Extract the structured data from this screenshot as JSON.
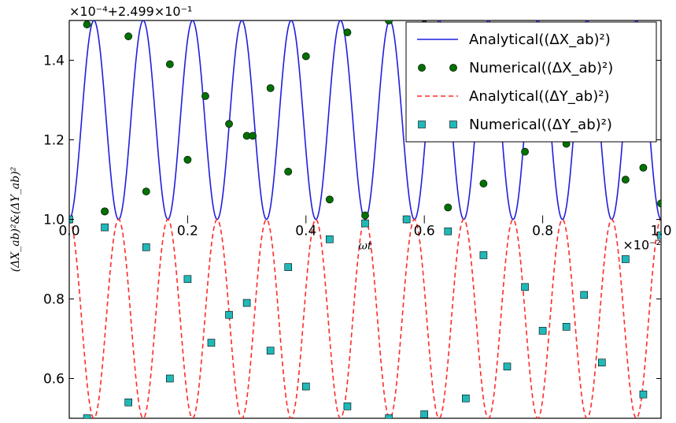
{
  "chart_data": {
    "type": "line",
    "title": "",
    "xlabel": "ωt",
    "ylabel": "(ΔX_ab)²&(ΔY_ab)²",
    "x_offset_label": "×10⁻²",
    "y_offset_label": "×10⁻⁴+2.499×10⁻¹",
    "xlim": [
      0,
      1.0
    ],
    "ylim": [
      0.5,
      1.5
    ],
    "x_ticks": [
      "0.0",
      "0.2",
      "0.4",
      "0.6",
      "0.8",
      "1.0"
    ],
    "y_ticks": [
      "0.6",
      "0.8",
      "1.0",
      "1.2",
      "1.4"
    ],
    "grid": false,
    "legend_position": "top-right",
    "analytical": {
      "num_oscillations": 12,
      "x_series_range": [
        1.0,
        1.5
      ],
      "y_series_range": [
        0.5,
        1.0
      ]
    },
    "series": [
      {
        "name": "Analytical((ΔX_ab)²)",
        "style": "line",
        "color": "#1f1fdd"
      },
      {
        "name": "Numerical((ΔX_ab)²)",
        "style": "circle-markers",
        "color": "#007000",
        "x": [
          0.0,
          0.03,
          0.06,
          0.06,
          0.1,
          0.13,
          0.17,
          0.2,
          0.23,
          0.27,
          0.3,
          0.31,
          0.34,
          0.37,
          0.4,
          0.44,
          0.47,
          0.5,
          0.54,
          0.57,
          0.6,
          0.64,
          0.67,
          0.7,
          0.74,
          0.77,
          0.8,
          0.84,
          0.87,
          0.9,
          0.94,
          0.97,
          1.0
        ],
        "y": [
          1.0,
          1.49,
          1.02,
          1.02,
          1.46,
          1.07,
          1.39,
          1.15,
          1.31,
          1.24,
          1.21,
          1.21,
          1.33,
          1.12,
          1.41,
          1.05,
          1.47,
          1.01,
          1.5,
          1.0,
          1.49,
          1.03,
          1.46,
          1.09,
          1.4,
          1.17,
          1.32,
          1.19,
          1.27,
          1.23,
          1.1,
          1.13,
          1.04
        ]
      },
      {
        "name": "Analytical((ΔY_ab)²)",
        "style": "dashed-line",
        "color": "#ff2a2a"
      },
      {
        "name": "Numerical((ΔY_ab)²)",
        "style": "square-markers",
        "color": "#20b8b8",
        "x": [
          0.0,
          0.03,
          0.06,
          0.1,
          0.13,
          0.17,
          0.2,
          0.24,
          0.27,
          0.3,
          0.34,
          0.37,
          0.4,
          0.44,
          0.47,
          0.5,
          0.54,
          0.57,
          0.6,
          0.64,
          0.67,
          0.7,
          0.74,
          0.77,
          0.8,
          0.84,
          0.87,
          0.9,
          0.94,
          0.97,
          1.0
        ],
        "y": [
          1.0,
          0.5,
          0.98,
          0.54,
          0.93,
          0.6,
          0.85,
          0.69,
          0.76,
          0.79,
          0.67,
          0.88,
          0.58,
          0.95,
          0.53,
          0.99,
          0.5,
          1.0,
          0.51,
          0.97,
          0.55,
          0.91,
          0.63,
          0.83,
          0.72,
          0.73,
          0.81,
          0.64,
          0.9,
          0.56,
          0.96
        ]
      }
    ]
  }
}
